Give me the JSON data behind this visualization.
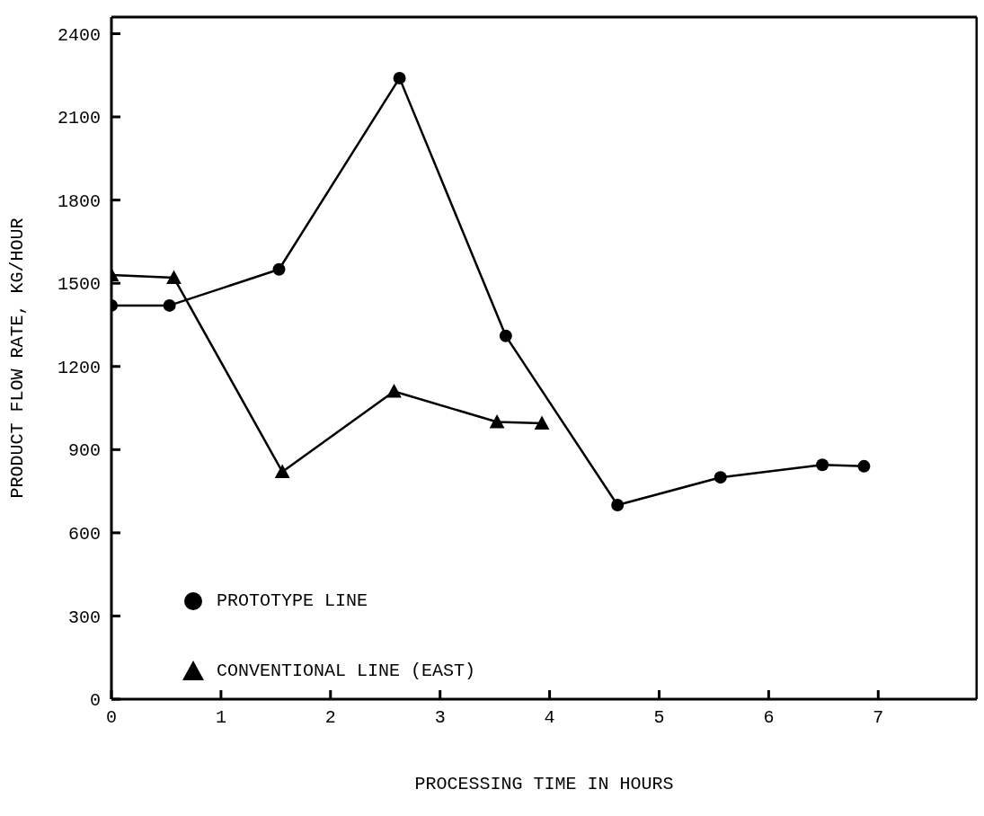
{
  "chart_data": {
    "type": "line",
    "xlabel": "PROCESSING TIME IN HOURS",
    "ylabel": "PRODUCT FLOW RATE, KG/HOUR",
    "xlim": [
      0,
      7.9
    ],
    "xticks": [
      0,
      1,
      2,
      3,
      4,
      5,
      6,
      7
    ],
    "ylim": [
      0,
      2460
    ],
    "yticks": [
      0,
      300,
      600,
      900,
      1200,
      1500,
      1800,
      2100,
      2400
    ],
    "grid": false,
    "legend": "left",
    "line_style": "solid",
    "series": [
      {
        "name": "PROTOTYPE LINE",
        "color": "#000000",
        "marker": "circle",
        "x": [
          0,
          0.53,
          1.53,
          2.63,
          3.6,
          4.62,
          5.56,
          6.49,
          6.87
        ],
        "values": [
          1420,
          1420,
          1550,
          2240,
          1310,
          700,
          800,
          845,
          840
        ]
      },
      {
        "name": "CONVENTIONAL LINE (EAST)",
        "color": "#000000",
        "marker": "triangle",
        "x": [
          0,
          0.57,
          1.56,
          2.58,
          3.52,
          3.93
        ],
        "values": [
          1530,
          1520,
          820,
          1110,
          1000,
          995
        ]
      }
    ]
  }
}
